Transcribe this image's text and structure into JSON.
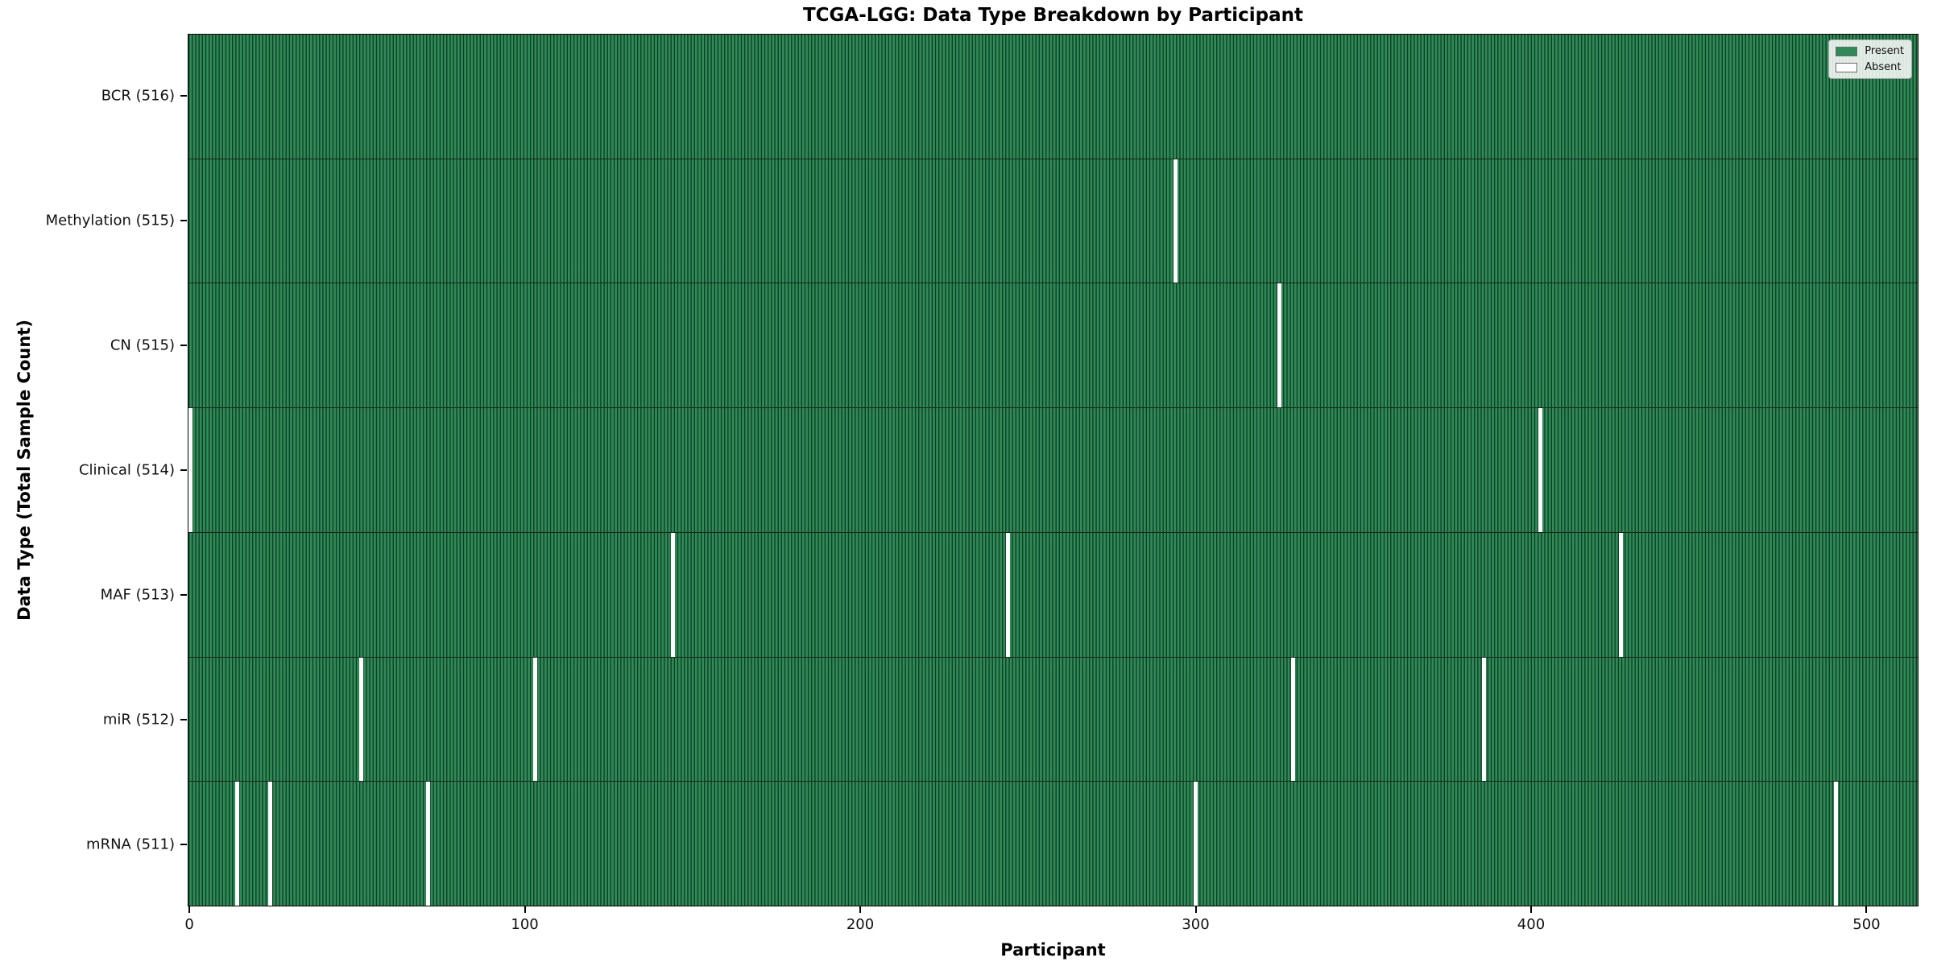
{
  "chart_data": {
    "type": "heatmap",
    "title": "TCGA-LGG: Data Type Breakdown by Participant",
    "xlabel": "Participant",
    "ylabel": "Data Type (Total Sample Count)",
    "x_ticks": [
      0,
      100,
      200,
      300,
      400,
      500
    ],
    "x_range": [
      0,
      515
    ],
    "total_participants": 516,
    "grid": false,
    "legend_position": "upper right",
    "rows": [
      {
        "name": "BCR",
        "label": "BCR (516)",
        "present_count": 516,
        "absent_participants": []
      },
      {
        "name": "Methylation",
        "label": "Methylation (515)",
        "present_count": 515,
        "absent_participants": [
          294
        ]
      },
      {
        "name": "CN",
        "label": "CN (515)",
        "present_count": 515,
        "absent_participants": [
          325
        ]
      },
      {
        "name": "Clinical",
        "label": "Clinical (514)",
        "present_count": 514,
        "absent_participants": [
          0,
          403
        ]
      },
      {
        "name": "MAF",
        "label": "MAF (513)",
        "present_count": 513,
        "absent_participants": [
          144,
          244,
          427
        ]
      },
      {
        "name": "miR",
        "label": "miR (512)",
        "present_count": 512,
        "absent_participants": [
          51,
          103,
          329,
          386
        ]
      },
      {
        "name": "mRNA",
        "label": "mRNA (511)",
        "present_count": 511,
        "absent_participants": [
          14,
          24,
          71,
          300,
          491
        ]
      }
    ],
    "colors": {
      "present": "#2e8b57",
      "absent": "#ffffff",
      "bar_edge": "#14241a",
      "plot_border": "#000000",
      "text": "#000000"
    },
    "legend": {
      "items": [
        {
          "label": "Present",
          "color": "#2e8b57"
        },
        {
          "label": "Absent",
          "color": "#ffffff"
        }
      ]
    }
  }
}
